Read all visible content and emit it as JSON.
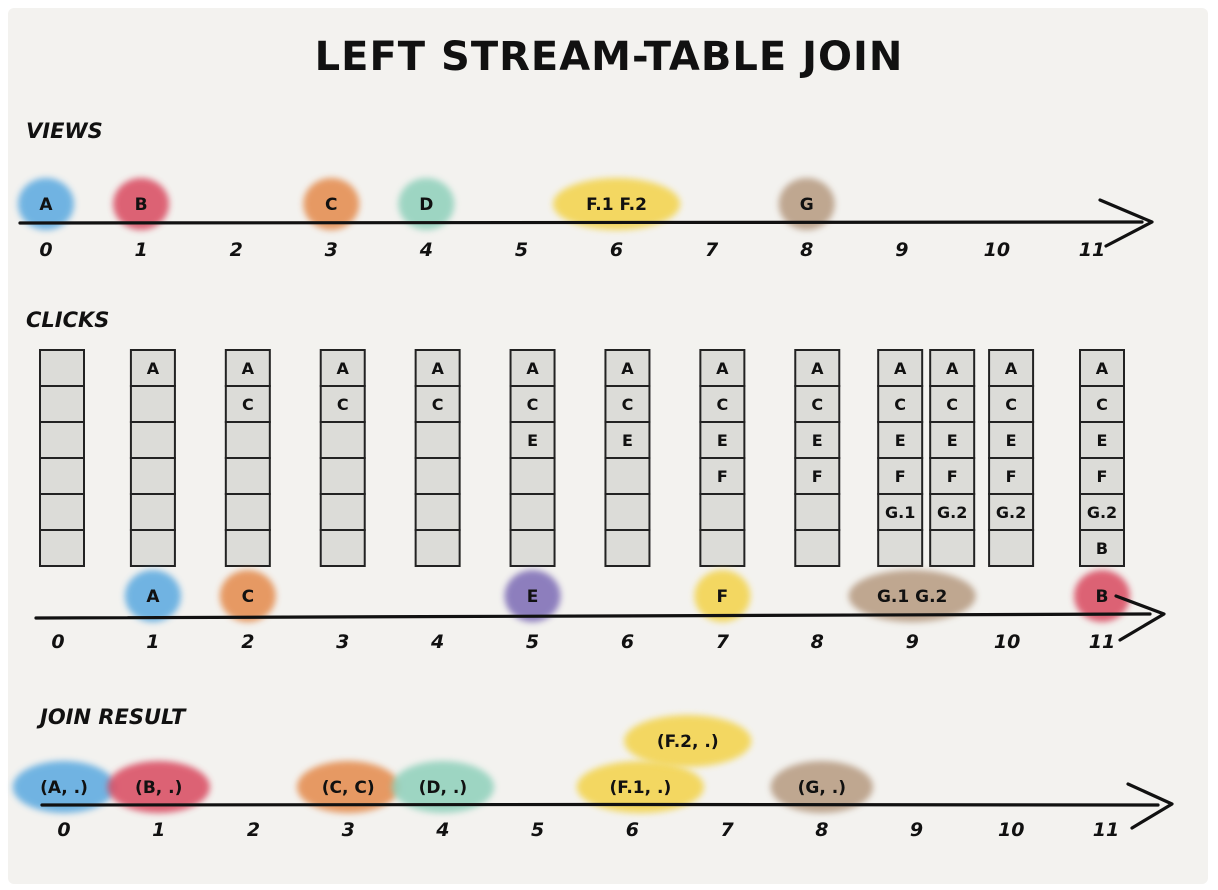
{
  "title": "LEFT STREAM-TABLE JOIN",
  "colors": {
    "background": "#f3f2ef",
    "cell_fill": "#dcdcd8",
    "blue": "#5aa9e0",
    "red": "#d9485f",
    "orange": "#e48a4c",
    "teal": "#8fd0bb",
    "yellow": "#f3d34a",
    "brown": "#b69a80",
    "purple": "#7b6bb5"
  },
  "views": {
    "label": "VIEWS",
    "ticks": [
      "0",
      "1",
      "2",
      "3",
      "4",
      "5",
      "6",
      "7",
      "8",
      "9",
      "10",
      "11"
    ],
    "events": [
      {
        "time": 0,
        "label": "A",
        "color": "blue"
      },
      {
        "time": 1,
        "label": "B",
        "color": "red"
      },
      {
        "time": 3,
        "label": "C",
        "color": "orange"
      },
      {
        "time": 4,
        "label": "D",
        "color": "teal"
      },
      {
        "time": 6,
        "label": "F.1  F.2",
        "color": "yellow"
      },
      {
        "time": 8,
        "label": "G",
        "color": "brown"
      }
    ]
  },
  "clicks": {
    "label": "CLICKS",
    "ticks": [
      "0",
      "1",
      "2",
      "3",
      "4",
      "5",
      "6",
      "7",
      "8",
      "9",
      "10",
      "11"
    ],
    "table_snapshots": [
      {
        "time": 0,
        "cells": []
      },
      {
        "time": 1,
        "cells": [
          "A"
        ]
      },
      {
        "time": 2,
        "cells": [
          "A",
          "C"
        ]
      },
      {
        "time": 3,
        "cells": [
          "A",
          "C"
        ]
      },
      {
        "time": 4,
        "cells": [
          "A",
          "C"
        ]
      },
      {
        "time": 5,
        "cells": [
          "A",
          "C",
          "E"
        ]
      },
      {
        "time": 6,
        "cells": [
          "A",
          "C",
          "E"
        ]
      },
      {
        "time": 7,
        "cells": [
          "A",
          "C",
          "E",
          "F"
        ]
      },
      {
        "time": 8,
        "cells": [
          "A",
          "C",
          "E",
          "F"
        ]
      },
      {
        "time": 9,
        "cells": [
          "A",
          "C",
          "E",
          "F",
          "G.1"
        ]
      },
      {
        "time": 9.5,
        "cells": [
          "A",
          "C",
          "E",
          "F",
          "G.2"
        ]
      },
      {
        "time": 10,
        "cells": [
          "A",
          "C",
          "E",
          "F",
          "G.2"
        ]
      },
      {
        "time": 11,
        "cells": [
          "A",
          "C",
          "E",
          "F",
          "G.2",
          "B"
        ]
      }
    ],
    "events": [
      {
        "time": 1,
        "label": "A",
        "color": "blue"
      },
      {
        "time": 2,
        "label": "C",
        "color": "orange"
      },
      {
        "time": 5,
        "label": "E",
        "color": "purple"
      },
      {
        "time": 7,
        "label": "F",
        "color": "yellow"
      },
      {
        "time": 9,
        "label": "G.1  G.2",
        "color": "brown"
      },
      {
        "time": 11,
        "label": "B",
        "color": "red"
      }
    ]
  },
  "join_result": {
    "label": "JOIN RESULT",
    "ticks": [
      "0",
      "1",
      "2",
      "3",
      "4",
      "5",
      "6",
      "7",
      "8",
      "9",
      "10",
      "11"
    ],
    "events": [
      {
        "time": 0,
        "label": "(A, .)",
        "color": "blue"
      },
      {
        "time": 1,
        "label": "(B, .)",
        "color": "red"
      },
      {
        "time": 3,
        "label": "(C, C)",
        "color": "orange"
      },
      {
        "time": 4,
        "label": "(D, .)",
        "color": "teal"
      },
      {
        "time": 6,
        "label": "(F.1, .)",
        "color": "yellow"
      },
      {
        "time": 6.5,
        "label": "(F.2, .)",
        "color": "yellow"
      },
      {
        "time": 8,
        "label": "(G, .)",
        "color": "brown"
      }
    ]
  }
}
